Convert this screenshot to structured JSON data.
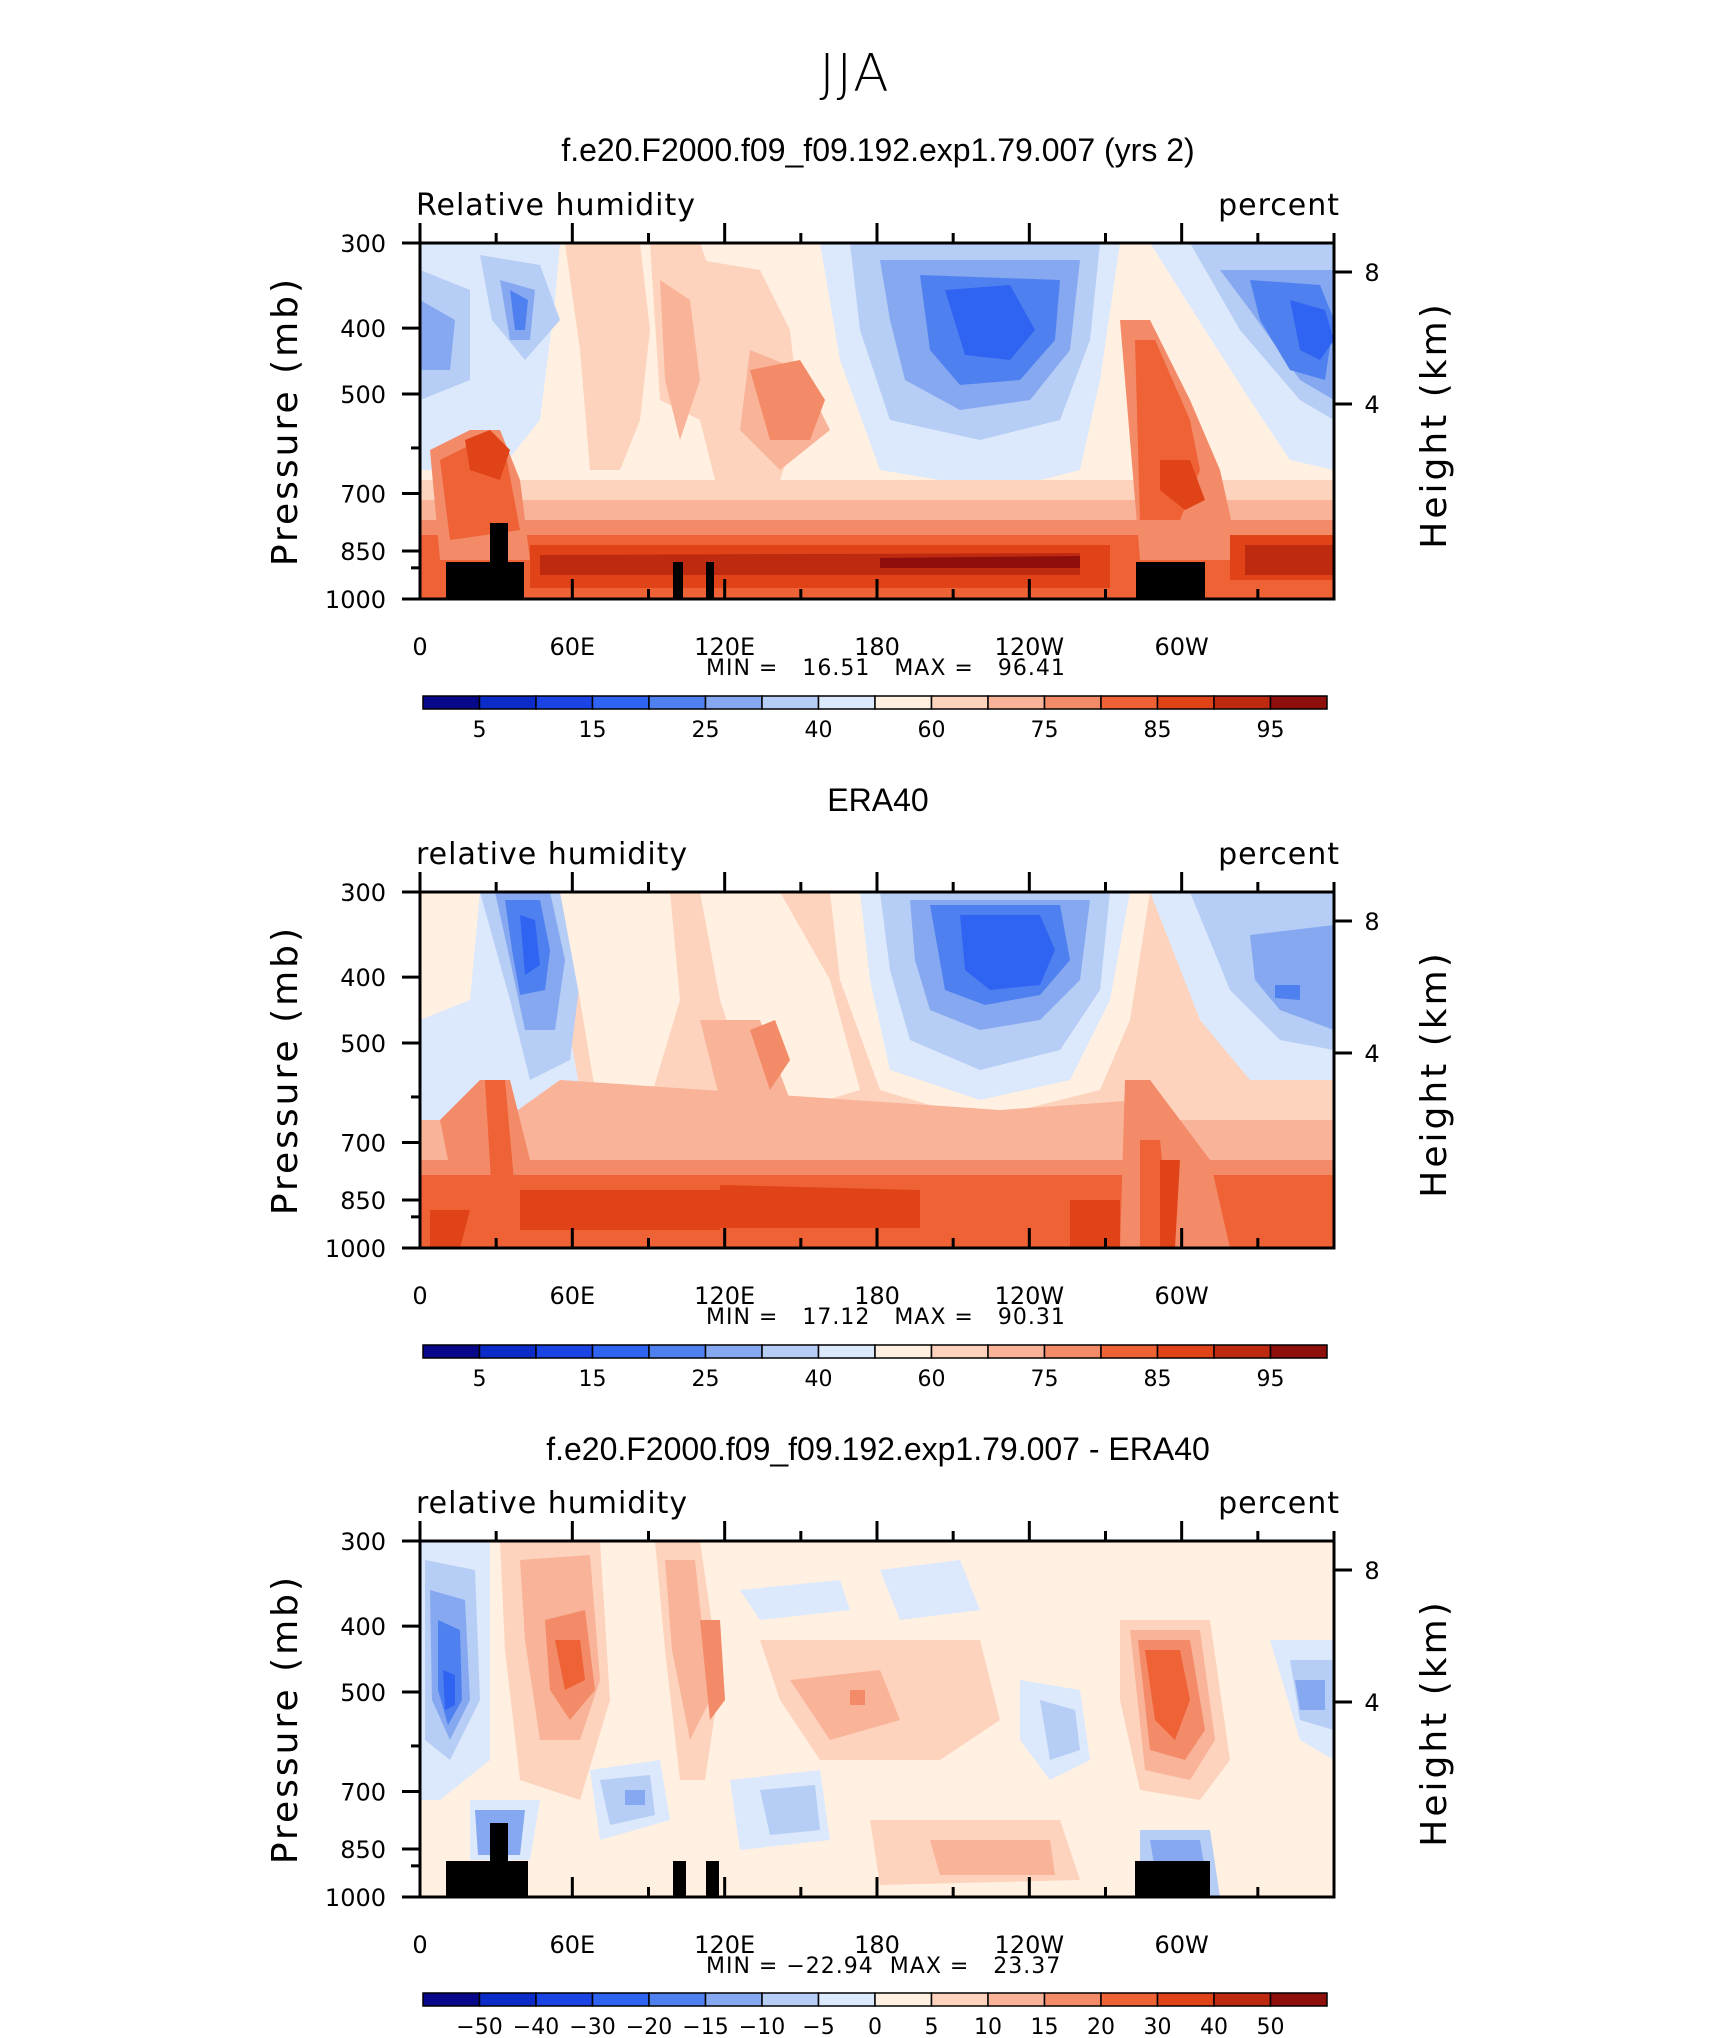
{
  "title": "JJA",
  "colors": {
    "rh": [
      "#08088a",
      "#0b2cc8",
      "#1a44e3",
      "#2f63f2",
      "#4f80f0",
      "#85a8f0",
      "#b6cdf5",
      "#dce8fb",
      "#fff0e2",
      "#fdd3bd",
      "#f9b398",
      "#f38a68",
      "#ee6236",
      "#e04318",
      "#bd2a10",
      "#8f0f0c"
    ],
    "land": "#000000"
  },
  "panels": [
    {
      "title": "f.e20.F2000.f09_f09.192.exp1.79.007 (yrs 2)",
      "left_label": "Relative humidity",
      "right_label": "percent",
      "stats": {
        "min_label": "MIN =",
        "min": "16.51",
        "max_label": "MAX =",
        "max": "96.41"
      },
      "colorbar": [
        "5",
        "15",
        "25",
        "40",
        "60",
        "75",
        "85",
        "95"
      ]
    },
    {
      "title": "ERA40",
      "left_label": "relative humidity",
      "right_label": "percent",
      "stats": {
        "min_label": "MIN =",
        "min": "17.12",
        "max_label": "MAX =",
        "max": "90.31"
      },
      "colorbar": [
        "5",
        "15",
        "25",
        "40",
        "60",
        "75",
        "85",
        "95"
      ]
    },
    {
      "title": "f.e20.F2000.f09_f09.192.exp1.79.007 - ERA40",
      "left_label": "relative humidity",
      "right_label": "percent",
      "stats": {
        "min_label": "MIN =",
        "min": "−22.94",
        "max_label": "MAX =",
        "max": "23.37"
      },
      "colorbar": [
        "−50",
        "−40",
        "−30",
        "−20",
        "−15",
        "−10",
        "−5",
        "0",
        "5",
        "10",
        "15",
        "20",
        "30",
        "40",
        "50"
      ]
    }
  ],
  "chart_data": {
    "type": "heatmap",
    "x_ticks": [
      "0",
      "60E",
      "120E",
      "180",
      "120W",
      "60W"
    ],
    "y_ticks": [
      "300",
      "400",
      "500",
      "700",
      "850",
      "1000"
    ],
    "y_label": "Pressure (mb)",
    "y2_ticks": [
      "8",
      "4"
    ],
    "y2_label": "Height (km)",
    "x_range": [
      0,
      360
    ],
    "y_range_mb": [
      1000,
      300
    ],
    "panels": [
      {
        "name": "f.e20.F2000.f09_f09.192.exp1.79.007 (yrs 2)",
        "variable": "Relative humidity",
        "units": "percent",
        "min": 16.51,
        "max": 96.41,
        "levels": [
          5,
          10,
          15,
          20,
          25,
          30,
          40,
          50,
          60,
          65,
          75,
          80,
          85,
          90,
          95
        ]
      },
      {
        "name": "ERA40",
        "variable": "relative humidity",
        "units": "percent",
        "min": 17.12,
        "max": 90.31,
        "levels": [
          5,
          10,
          15,
          20,
          25,
          30,
          40,
          50,
          60,
          65,
          75,
          80,
          85,
          90,
          95
        ]
      },
      {
        "name": "f.e20.F2000.f09_f09.192.exp1.79.007 - ERA40",
        "variable": "relative humidity",
        "units": "percent",
        "min": -22.94,
        "max": 23.37,
        "levels": [
          -50,
          -40,
          -30,
          -20,
          -15,
          -10,
          -5,
          0,
          5,
          10,
          15,
          20,
          30,
          40,
          50
        ]
      }
    ]
  }
}
